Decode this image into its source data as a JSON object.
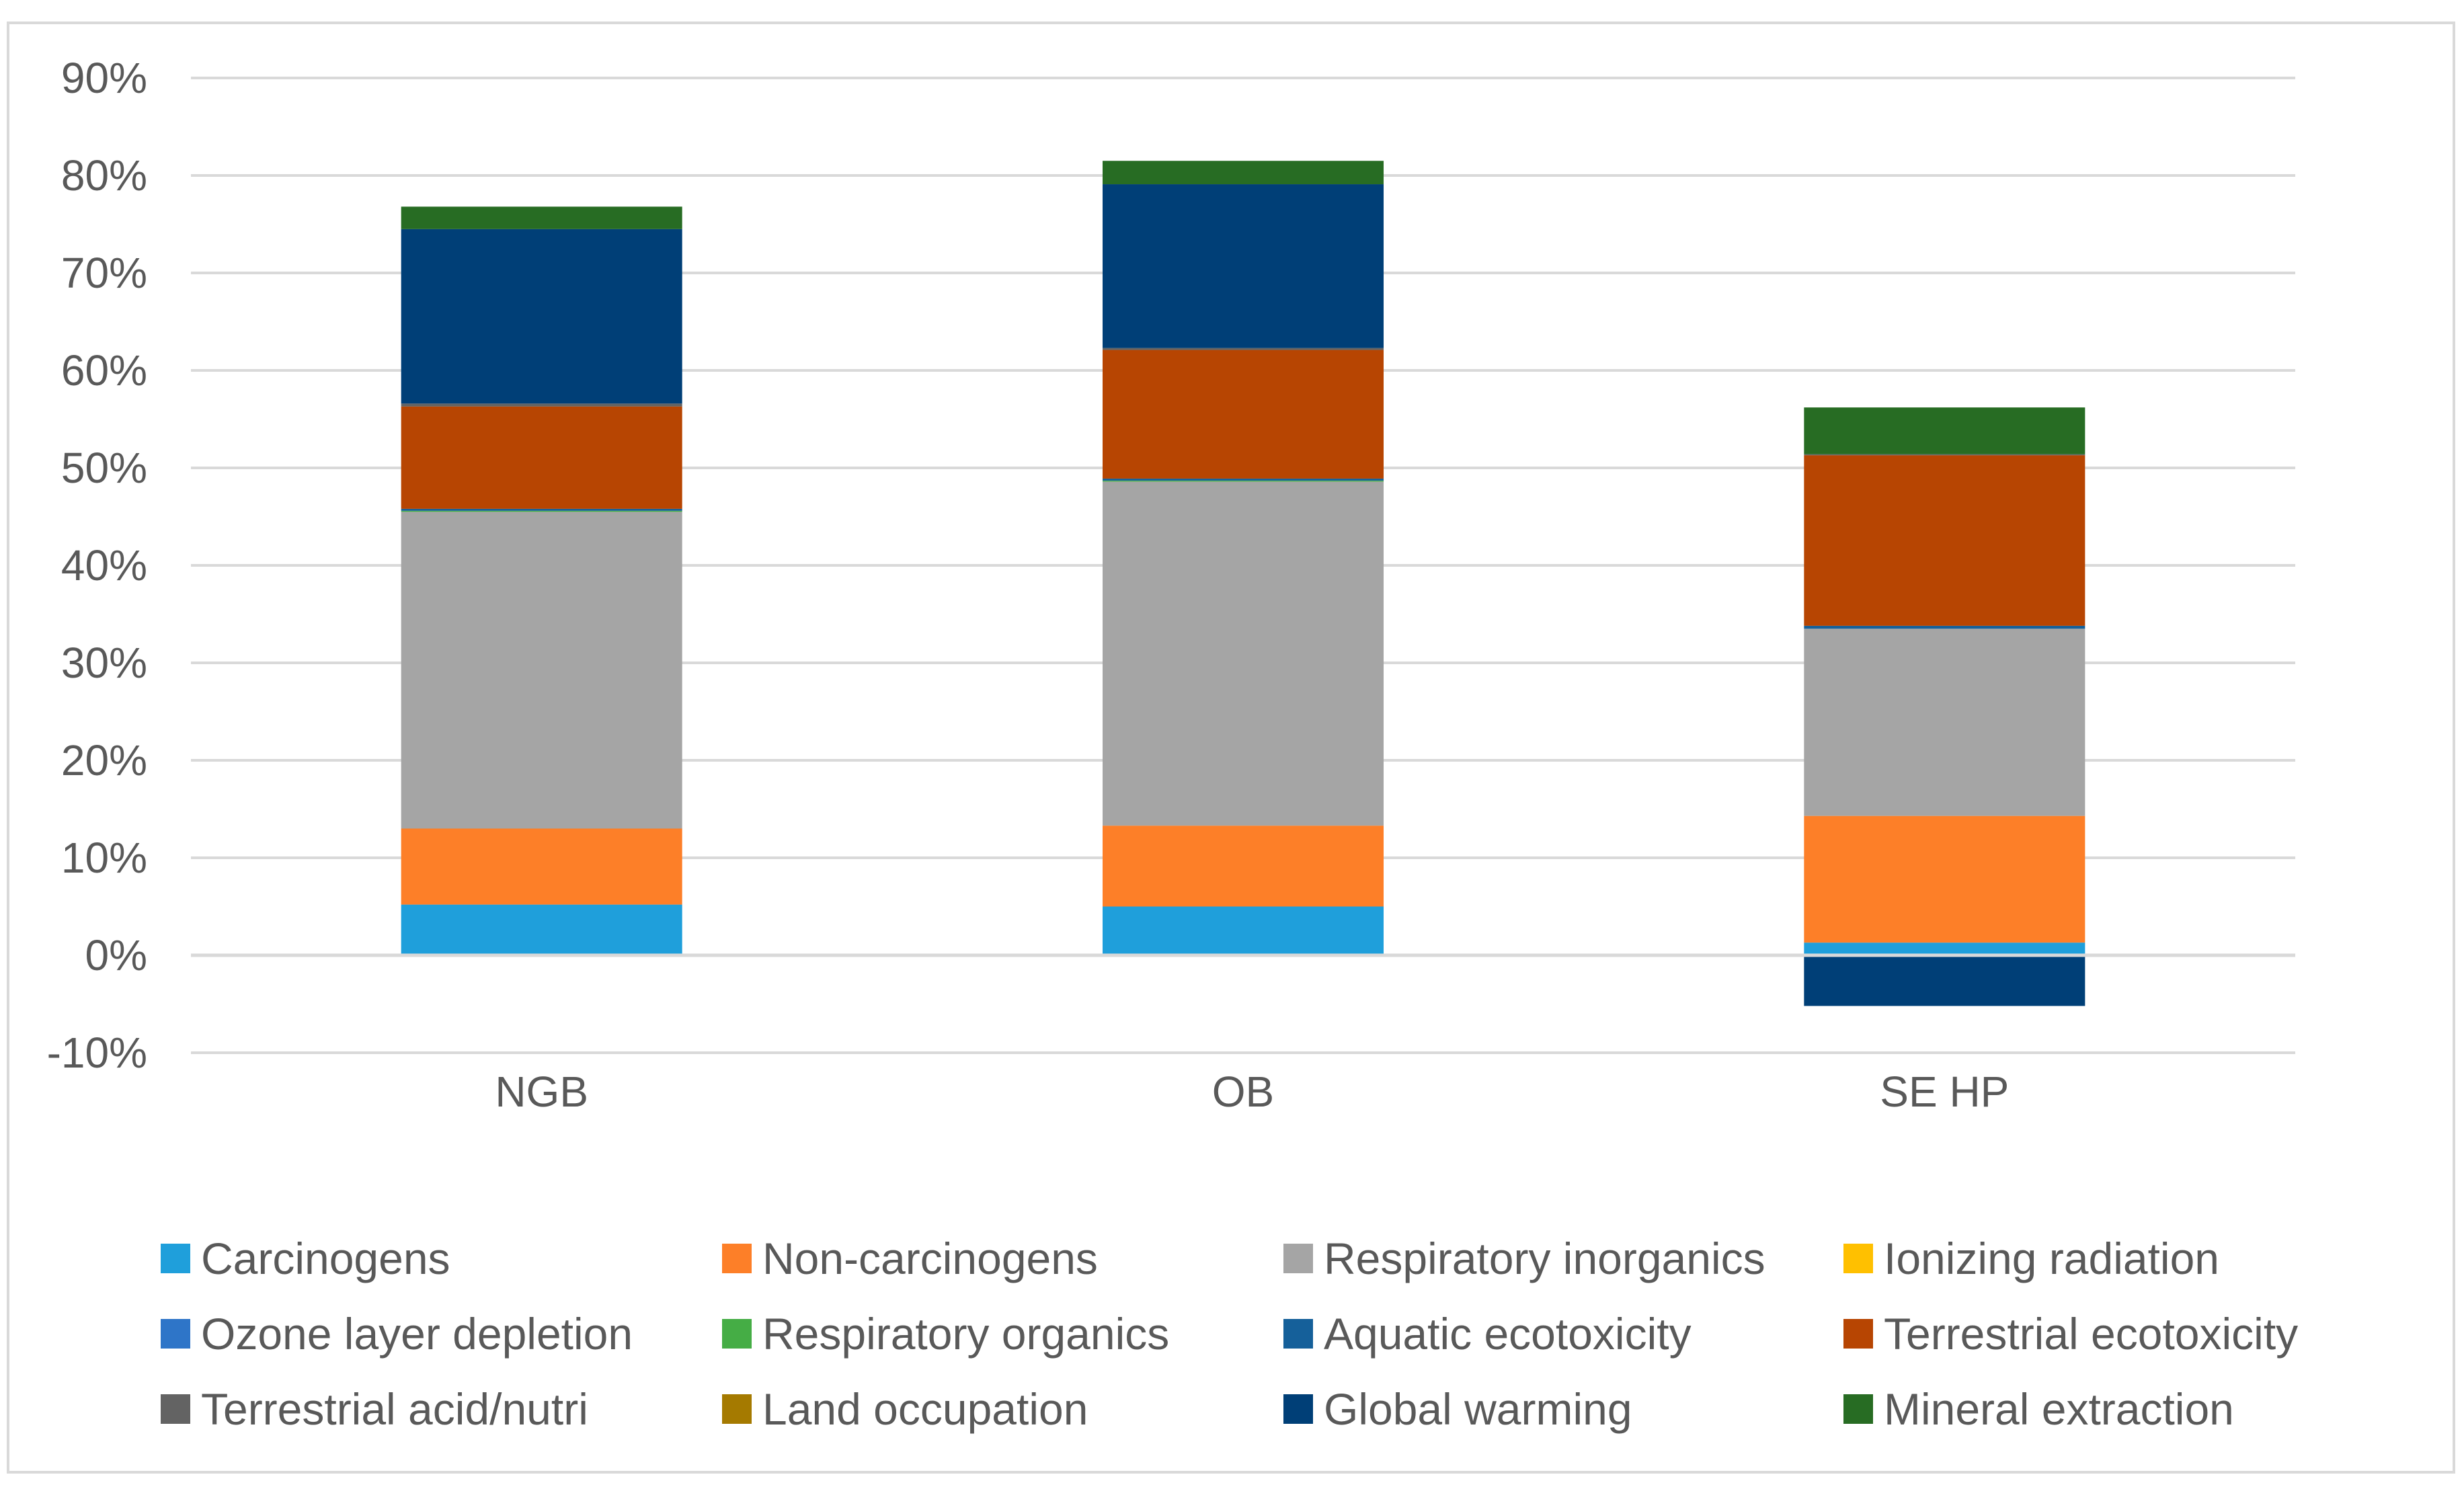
{
  "chart_data": {
    "type": "bar",
    "stacked": true,
    "title": "",
    "xlabel": "",
    "ylabel": "",
    "ylim": [
      -10,
      90
    ],
    "y_ticks": [
      -10,
      0,
      10,
      20,
      30,
      40,
      50,
      60,
      70,
      80,
      90
    ],
    "y_tick_labels": [
      "-10%",
      "0%",
      "10%",
      "20%",
      "30%",
      "40%",
      "50%",
      "60%",
      "70%",
      "80%",
      "90%"
    ],
    "grid": true,
    "legend_position": "bottom",
    "categories": [
      "NGB",
      "OB",
      "SE HP"
    ],
    "series": [
      {
        "name": "Carcinogens",
        "color": "#1f9fdb",
        "values": [
          5.2,
          5.0,
          1.3
        ]
      },
      {
        "name": "Non-carcinogens",
        "color": "#fd7f28",
        "values": [
          7.8,
          8.3,
          13.0
        ]
      },
      {
        "name": "Respiratory inorganics",
        "color": "#a5a5a5",
        "values": [
          32.5,
          35.3,
          19.2
        ]
      },
      {
        "name": "Ionizing radiation",
        "color": "#ffc000",
        "values": [
          0.0,
          0.0,
          0.0
        ]
      },
      {
        "name": "Ozone layer depletion",
        "color": "#2e75c8",
        "values": [
          0.0,
          0.0,
          0.0
        ]
      },
      {
        "name": "Respiratory organics",
        "color": "#45ad45",
        "values": [
          0.1,
          0.1,
          0.0
        ]
      },
      {
        "name": "Aquatic ecotoxicity",
        "color": "#15609a",
        "values": [
          0.2,
          0.2,
          0.3
        ]
      },
      {
        "name": "Terrestrial ecotoxicity",
        "color": "#b74502",
        "values": [
          10.5,
          13.2,
          17.5
        ]
      },
      {
        "name": "Terrestrial acid/nutri",
        "color": "#636363",
        "values": [
          0.3,
          0.2,
          0.1
        ]
      },
      {
        "name": "Land occupation",
        "color": "#a57a00",
        "values": [
          0.0,
          0.0,
          0.0
        ]
      },
      {
        "name": "Global warming",
        "color": "#003f77",
        "values": [
          17.9,
          16.8,
          -5.2
        ]
      },
      {
        "name": "Mineral extraction",
        "color": "#276c23",
        "values": [
          2.3,
          2.4,
          4.8
        ]
      }
    ]
  }
}
